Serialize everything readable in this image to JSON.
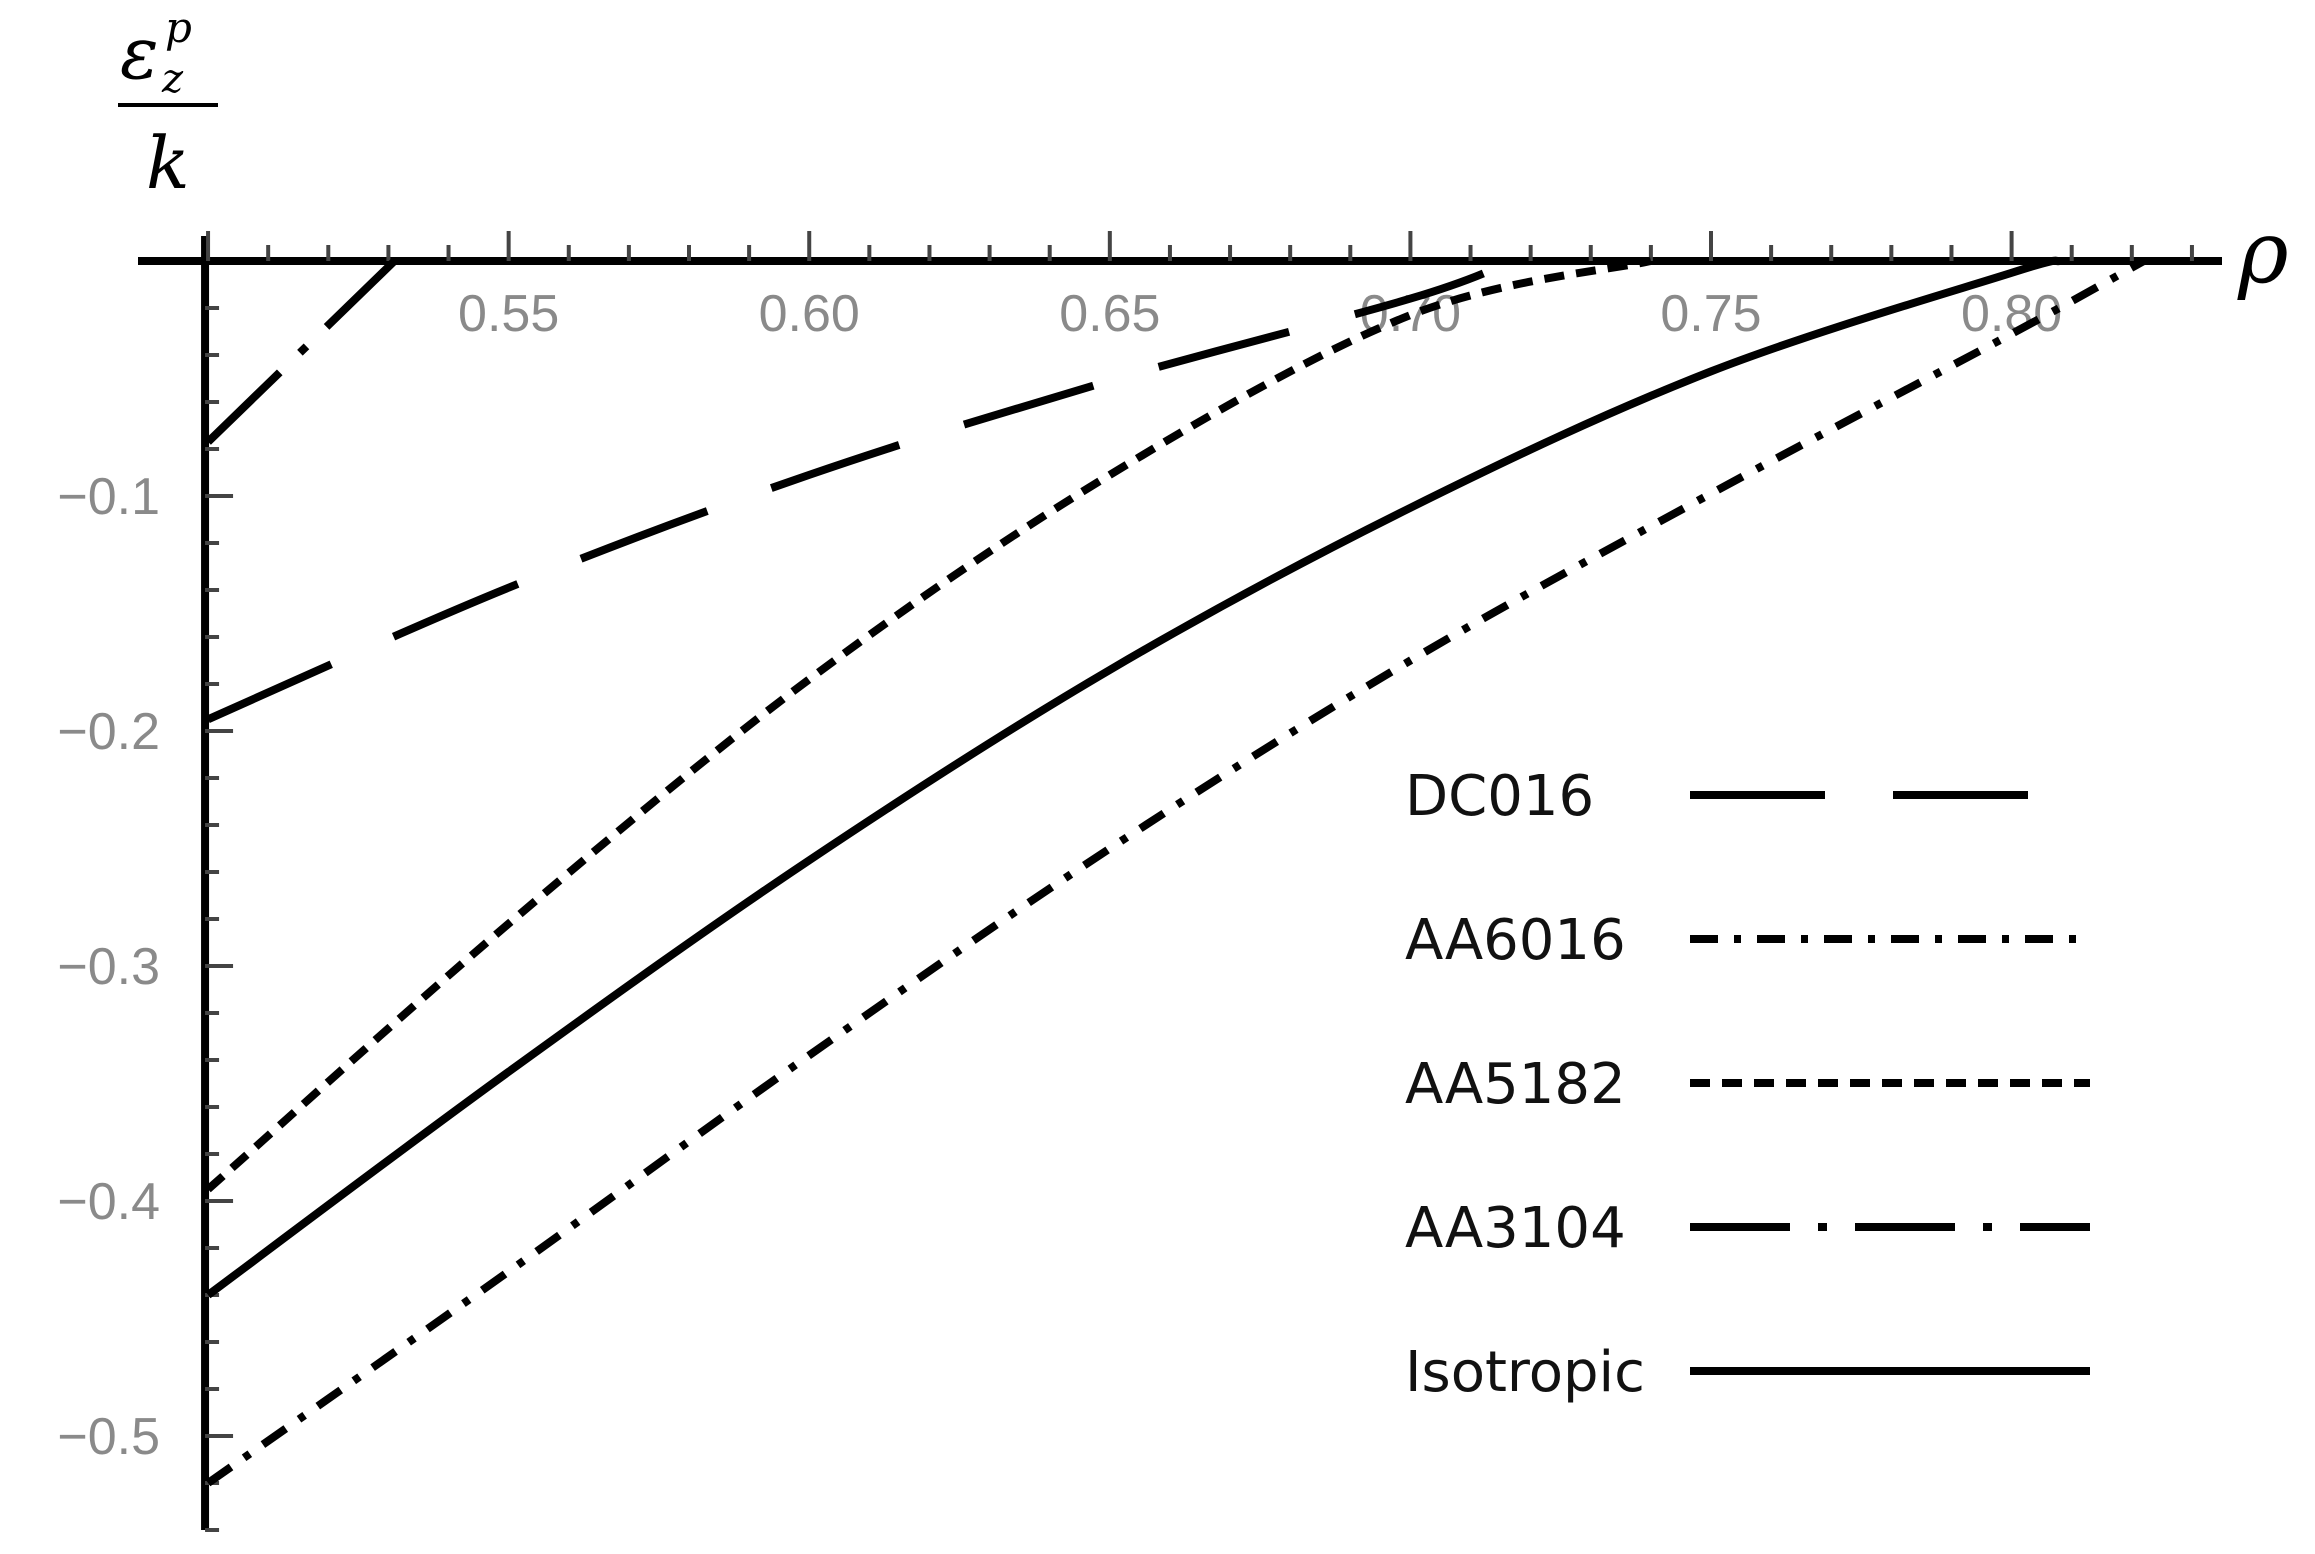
{
  "chart_data": {
    "type": "line",
    "xlabel": "ρ",
    "ylabel": {
      "symbol": "ε",
      "subscript": "z",
      "superscript": "p",
      "denominator": "k"
    },
    "xlim": [
      0.495,
      0.835
    ],
    "ylim": [
      -0.54,
      0.0
    ],
    "x_axis_position": "top (y = 0)",
    "x_ticks": [
      {
        "value": 0.55,
        "label": "0.55"
      },
      {
        "value": 0.6,
        "label": "0.60"
      },
      {
        "value": 0.65,
        "label": "0.65"
      },
      {
        "value": 0.7,
        "label": "0.70"
      },
      {
        "value": 0.75,
        "label": "0.75"
      },
      {
        "value": 0.8,
        "label": "0.80"
      }
    ],
    "y_ticks": [
      {
        "value": -0.1,
        "label": "−0.1"
      },
      {
        "value": -0.2,
        "label": "−0.2"
      },
      {
        "value": -0.3,
        "label": "−0.3"
      },
      {
        "value": -0.4,
        "label": "−0.4"
      },
      {
        "value": -0.5,
        "label": "−0.5"
      }
    ],
    "grid": false,
    "legend_position": "bottom-right",
    "series": [
      {
        "name": "DC016",
        "style": "long-dash",
        "x": [
          0.5,
          0.55,
          0.6,
          0.65,
          0.7,
          0.717
        ],
        "y": [
          -0.195,
          -0.139,
          -0.091,
          -0.051,
          -0.016,
          0.0
        ]
      },
      {
        "name": "AA6016",
        "style": "dash-dot",
        "x": [
          0.5,
          0.55,
          0.6,
          0.65,
          0.7,
          0.75,
          0.8,
          0.822
        ],
        "y": [
          -0.52,
          -0.43,
          -0.338,
          -0.25,
          -0.17,
          -0.099,
          -0.031,
          0.0
        ]
      },
      {
        "name": "AA5182",
        "style": "short-dash",
        "x": [
          0.5,
          0.55,
          0.6,
          0.65,
          0.7,
          0.74
        ],
        "y": [
          -0.395,
          -0.282,
          -0.178,
          -0.091,
          -0.023,
          0.0
        ]
      },
      {
        "name": "AA3104",
        "style": "long-dash-dot",
        "x": [
          0.5,
          0.531
        ],
        "y": [
          -0.077,
          0.0
        ]
      },
      {
        "name": "Isotropic",
        "style": "solid",
        "x": [
          0.5,
          0.55,
          0.6,
          0.65,
          0.7,
          0.75,
          0.8,
          0.808
        ],
        "y": [
          -0.44,
          -0.345,
          -0.255,
          -0.174,
          -0.105,
          -0.047,
          -0.005,
          0.0
        ]
      }
    ]
  }
}
